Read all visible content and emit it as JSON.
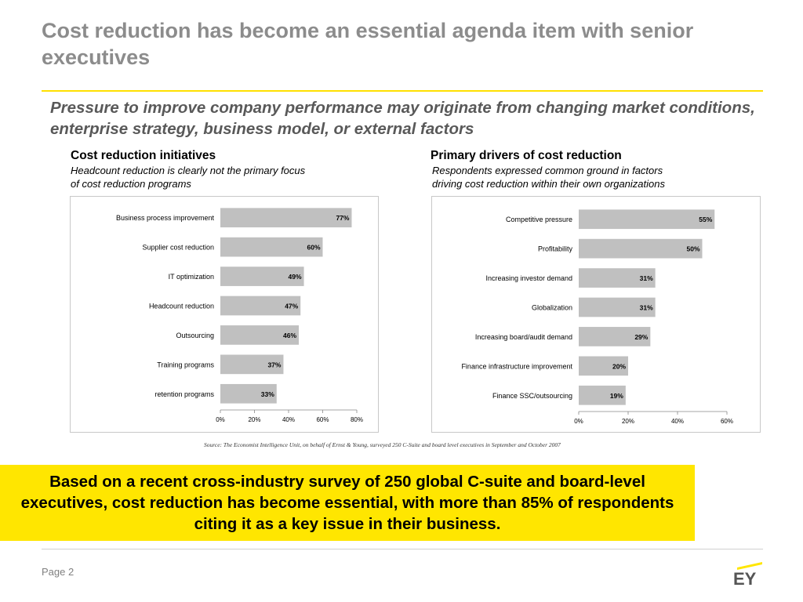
{
  "title": "Cost reduction has become an essential agenda item with senior executives",
  "subtitle": "Pressure to improve company performance may originate from changing market conditions, enterprise strategy, business model, or external factors",
  "left_chart": {
    "heading": "Cost reduction initiatives",
    "note_line1": "Headcount reduction is clearly not the primary focus",
    "note_line2": "of cost reduction programs"
  },
  "right_chart": {
    "heading": "Primary drivers of cost reduction",
    "note_line1": "Respondents expressed common ground in factors",
    "note_line2": "driving cost reduction within their own organizations"
  },
  "chart_data": [
    {
      "type": "bar",
      "orientation": "horizontal",
      "title": "Cost reduction initiatives",
      "categories": [
        "Business process improvement",
        "Supplier cost reduction",
        "IT optimization",
        "Headcount reduction",
        "Outsourcing",
        "Training programs",
        "retention programs"
      ],
      "values": [
        77,
        60,
        49,
        47,
        46,
        37,
        33
      ],
      "value_labels": [
        "77%",
        "60%",
        "49%",
        "47%",
        "46%",
        "37%",
        "33%"
      ],
      "xlim": [
        0,
        80
      ],
      "xticks": [
        "0%",
        "20%",
        "40%",
        "60%",
        "80%"
      ],
      "bar_color": "#c0c0c0"
    },
    {
      "type": "bar",
      "orientation": "horizontal",
      "title": "Primary drivers of cost reduction",
      "categories": [
        "Competitive pressure",
        "Profitability",
        "Increasing investor demand",
        "Globalization",
        "Increasing board/audit demand",
        "Finance infrastructure improvement",
        "Finance SSC/outsourcing"
      ],
      "values": [
        55,
        50,
        31,
        31,
        29,
        20,
        19
      ],
      "value_labels": [
        "55%",
        "50%",
        "31%",
        "31%",
        "29%",
        "20%",
        "19%"
      ],
      "xlim": [
        0,
        60
      ],
      "xticks": [
        "0%",
        "20%",
        "40%",
        "60%"
      ],
      "bar_color": "#c0c0c0"
    }
  ],
  "source": "Source: The Economist Intelligence Unit, on behalf of Ernst & Young, surveyed 250 C-Suite and board level executives  in September and October 2007",
  "callout": "Based on a recent cross-industry survey of 250 global C-suite and board-level executives, cost reduction has become essential, with more than 85% of respondents citing it as a key issue in their business.",
  "footer": {
    "page": "Page 2",
    "logo": "EY"
  },
  "colors": {
    "accent_yellow": "#ffe600",
    "title_gray": "#8c8c8c",
    "bar_gray": "#c0c0c0"
  }
}
